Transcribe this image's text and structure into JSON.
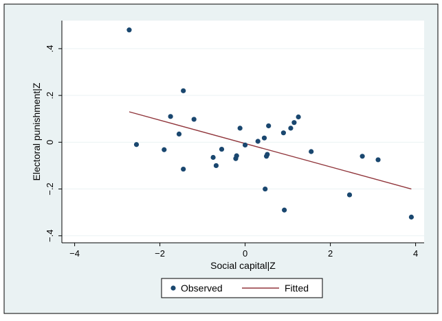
{
  "chart_data": {
    "type": "scatter",
    "xlabel": "Social capital|Z",
    "ylabel": "Electoral punishment|Z",
    "xlim": [
      -4.3,
      4.2
    ],
    "ylim": [
      -0.43,
      0.52
    ],
    "xticks": [
      -4,
      -2,
      0,
      2,
      4
    ],
    "xtick_labels": [
      "−4",
      "−2",
      "0",
      "2",
      "4"
    ],
    "yticks": [
      -0.4,
      -0.2,
      0,
      0.2,
      0.4
    ],
    "ytick_labels": [
      "−.4",
      "−.2",
      "0",
      ".2",
      ".4"
    ],
    "grid": "horizontal",
    "legend_position": "bottom",
    "colors": {
      "outer_background": "#eaf2f3",
      "plot_background": "#ffffff",
      "observed": "#1a476f",
      "fitted": "#90353b",
      "grid": "#eaf2f3",
      "frame": "#000000"
    },
    "series": [
      {
        "name": "Observed",
        "kind": "scatter",
        "points": [
          [
            -2.72,
            0.48
          ],
          [
            -2.55,
            -0.01
          ],
          [
            -1.9,
            -0.032
          ],
          [
            -1.75,
            0.11
          ],
          [
            -1.55,
            0.035
          ],
          [
            -1.45,
            0.22
          ],
          [
            -1.45,
            -0.115
          ],
          [
            -1.2,
            0.098
          ],
          [
            -0.75,
            -0.065
          ],
          [
            -0.68,
            -0.1
          ],
          [
            -0.55,
            -0.03
          ],
          [
            -0.22,
            -0.07
          ],
          [
            -0.2,
            -0.058
          ],
          [
            -0.12,
            0.06
          ],
          [
            0.0,
            -0.012
          ],
          [
            0.3,
            0.004
          ],
          [
            0.45,
            0.018
          ],
          [
            0.47,
            -0.2
          ],
          [
            0.5,
            -0.06
          ],
          [
            0.52,
            -0.052
          ],
          [
            0.55,
            0.07
          ],
          [
            0.9,
            0.04
          ],
          [
            0.92,
            -0.29
          ],
          [
            1.07,
            0.06
          ],
          [
            1.15,
            0.084
          ],
          [
            1.25,
            0.108
          ],
          [
            1.55,
            -0.04
          ],
          [
            2.45,
            -0.225
          ],
          [
            2.75,
            -0.06
          ],
          [
            3.12,
            -0.075
          ],
          [
            3.9,
            -0.32
          ]
        ]
      },
      {
        "name": "Fitted",
        "kind": "line",
        "points": [
          [
            -2.72,
            0.13
          ],
          [
            3.9,
            -0.2
          ]
        ]
      }
    ]
  }
}
